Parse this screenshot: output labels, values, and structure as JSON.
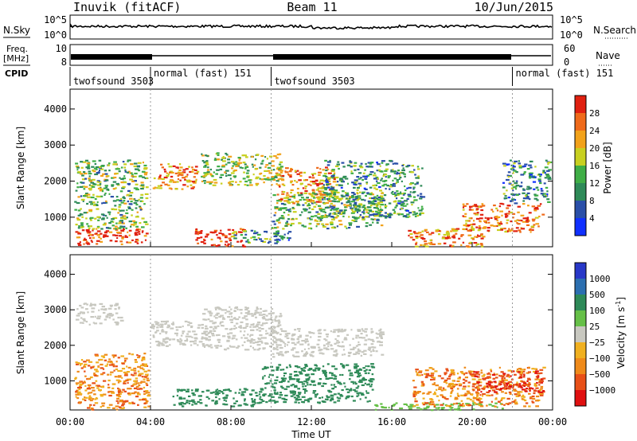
{
  "header": {
    "station": "Inuvik (fitACF)",
    "beam": "Beam 11",
    "date": "10/Jun/2015"
  },
  "top_panels": {
    "nsky_label": "N.Sky",
    "nsearch_label": "N.Search",
    "nsky_ticks": [
      "10^5",
      "10^0"
    ],
    "nsearch_ticks": [
      "10^5",
      "10^0"
    ],
    "freq_label_1": "Freq.",
    "freq_label_2": "[MHz]",
    "freq_ticks": [
      "10",
      "8"
    ],
    "nave_label": "Nave",
    "nave_ticks": [
      "60",
      "0"
    ],
    "cpid_label": "CPID",
    "cpid_segments": [
      {
        "label": "twofsound 3503",
        "start": 0,
        "end": 4
      },
      {
        "label": "normal (fast) 151",
        "start": 4,
        "end": 10
      },
      {
        "label": "twofsound 3503",
        "start": 10,
        "end": 22
      },
      {
        "label": "normal (fast) 151",
        "start": 22,
        "end": 24
      }
    ]
  },
  "chart_data": [
    {
      "type": "heatmap",
      "name": "power",
      "ylabel": "Slant Range [km]",
      "ylim": [
        180,
        4550
      ],
      "yticks": [
        1000,
        2000,
        3000,
        4000
      ],
      "xlim": [
        0,
        24
      ],
      "colorbar_label": "Power [dB]",
      "colorbar_ticks": [
        "4",
        "8",
        "12",
        "16",
        "20",
        "24",
        "28"
      ],
      "colorbar_colors": [
        "#1030ff",
        "#2a4fa8",
        "#2e8a58",
        "#3fae46",
        "#c8d020",
        "#f2a21a",
        "#ef6a1a",
        "#e02010"
      ],
      "blobs": [
        {
          "t0": 0.2,
          "t1": 3.9,
          "r0": 250,
          "r1": 700,
          "level": 0.9
        },
        {
          "t0": 0.2,
          "t1": 3.8,
          "r0": 700,
          "r1": 2600,
          "level": 0.45
        },
        {
          "t0": 4.1,
          "t1": 6.3,
          "r0": 1800,
          "r1": 2500,
          "level": 0.75
        },
        {
          "t0": 6.2,
          "t1": 8.6,
          "r0": 200,
          "r1": 700,
          "level": 0.95
        },
        {
          "t0": 6.5,
          "t1": 10.5,
          "r0": 1900,
          "r1": 2800,
          "level": 0.5
        },
        {
          "t0": 10.2,
          "t1": 13.2,
          "r0": 1400,
          "r1": 2400,
          "level": 0.75
        },
        {
          "t0": 10.0,
          "t1": 15.5,
          "r0": 700,
          "r1": 1700,
          "level": 0.45
        },
        {
          "t0": 12.5,
          "t1": 17.5,
          "r0": 1000,
          "r1": 2600,
          "level": 0.35
        },
        {
          "t0": 16.8,
          "t1": 20.5,
          "r0": 200,
          "r1": 700,
          "level": 0.75
        },
        {
          "t0": 19.5,
          "t1": 23.5,
          "r0": 600,
          "r1": 1400,
          "level": 0.8
        },
        {
          "t0": 21.5,
          "t1": 23.8,
          "r0": 1400,
          "r1": 2600,
          "level": 0.3
        },
        {
          "t0": 8.0,
          "t1": 11.0,
          "r0": 300,
          "r1": 650,
          "level": 0.35
        }
      ]
    },
    {
      "type": "heatmap",
      "name": "velocity",
      "ylabel": "Slant Range [km]",
      "xlabel": "Time UT",
      "ylim": [
        180,
        4550
      ],
      "yticks": [
        1000,
        2000,
        3000,
        4000
      ],
      "xlim": [
        0,
        24
      ],
      "xticks": [
        "00:00",
        "04:00",
        "08:00",
        "12:00",
        "16:00",
        "20:00",
        "00:00"
      ],
      "colorbar_label": "Velocity [m s",
      "colorbar_label_sup": "-1",
      "colorbar_label_end": "]",
      "colorbar_ticks": [
        "1000",
        "500",
        "100",
        "25",
        "−25",
        "−100",
        "−500",
        "−1000"
      ],
      "colorbar_colors": [
        "#2838c8",
        "#2c6fb0",
        "#2e8a58",
        "#66c048",
        "#c8c8c0",
        "#f0b020",
        "#ef8a1a",
        "#e85018",
        "#e01010"
      ],
      "blobs": [
        {
          "t0": 0.2,
          "t1": 3.9,
          "r0": 200,
          "r1": 1800,
          "level": "orange"
        },
        {
          "t0": 0.2,
          "t1": 2.5,
          "r0": 2600,
          "r1": 3200,
          "level": "grey"
        },
        {
          "t0": 4.0,
          "t1": 7.0,
          "r0": 2000,
          "r1": 2700,
          "level": "grey"
        },
        {
          "t0": 5.0,
          "t1": 9.5,
          "r0": 300,
          "r1": 800,
          "level": "green"
        },
        {
          "t0": 6.5,
          "t1": 10.5,
          "r0": 1900,
          "r1": 3100,
          "level": "grey"
        },
        {
          "t0": 10.0,
          "t1": 15.5,
          "r0": 1700,
          "r1": 2500,
          "level": "grey"
        },
        {
          "t0": 9.5,
          "t1": 15.0,
          "r0": 400,
          "r1": 1500,
          "level": "green"
        },
        {
          "t0": 15.0,
          "t1": 21.5,
          "r0": 200,
          "r1": 400,
          "level": "lightgreen"
        },
        {
          "t0": 17.0,
          "t1": 23.5,
          "r0": 300,
          "r1": 1400,
          "level": "orange"
        },
        {
          "t0": 20.0,
          "t1": 23.5,
          "r0": 700,
          "r1": 1300,
          "level": "red"
        }
      ]
    }
  ]
}
